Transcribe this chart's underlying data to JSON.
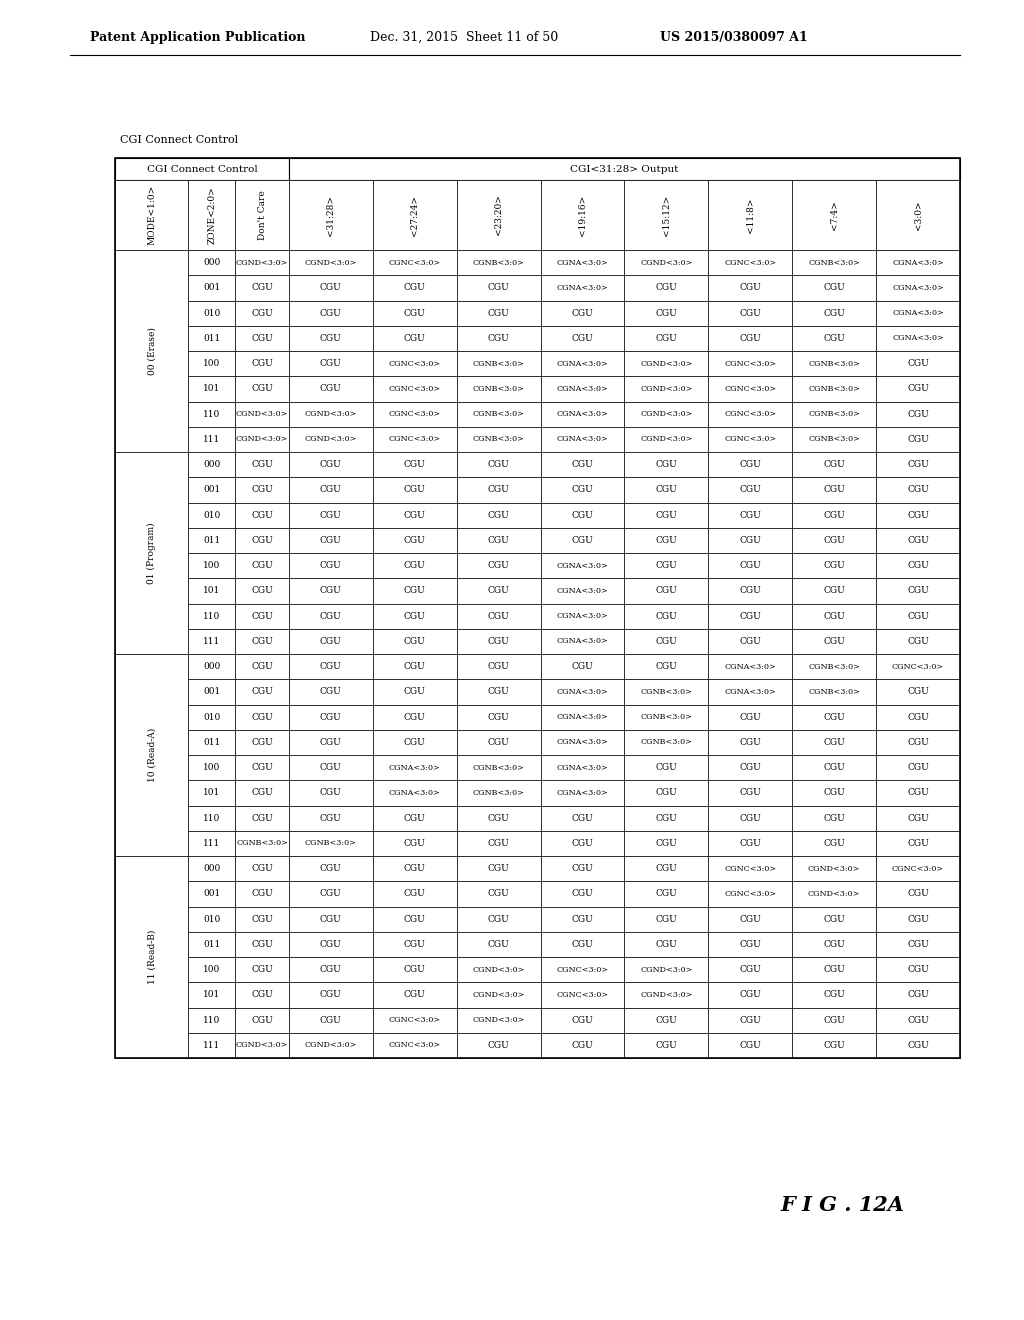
{
  "header_line1": "Patent Application Publication",
  "header_line2": "Dec. 31, 2015  Sheet 11 of 50",
  "header_line3": "US 2015/0380097 A1",
  "fig_label": "F I G . 12A",
  "above_table_label": "CGI Connect Control",
  "col_group1_label": "CGI Connect Control",
  "col_group2_label": "CGI<31:28> Output",
  "col_headers": [
    "MODE<1:0>",
    "ZONE<2:0>",
    "Don't Care",
    "<31:28>",
    "<27:24>",
    "<23:20>",
    "<19:16>",
    "<15:12>",
    "<11:8>",
    "<7:4>",
    "<3:0>"
  ],
  "row_groups": [
    {
      "mode_label": "00 (Erase)",
      "zones": [
        {
          "zone": "000",
          "dont_care": "CGND<3:0>",
          "c3128": "CGND<3:0>",
          "c2724": "CGNC<3:0>",
          "c2320": "CGNB<3:0>",
          "c1916": "CGNA<3:0>",
          "c1512": "CGND<3:0>",
          "c118": "CGNC<3:0>",
          "c74": "CGNB<3:0>",
          "c30": "CGNA<3:0>"
        },
        {
          "zone": "001",
          "dont_care": "CGU",
          "c3128": "CGU",
          "c2724": "CGU",
          "c2320": "CGU",
          "c1916": "CGNA<3:0>",
          "c1512": "CGU",
          "c118": "CGU",
          "c74": "CGU",
          "c30": "CGNA<3:0>"
        },
        {
          "zone": "010",
          "dont_care": "CGU",
          "c3128": "CGU",
          "c2724": "CGU",
          "c2320": "CGU",
          "c1916": "CGU",
          "c1512": "CGU",
          "c118": "CGU",
          "c74": "CGU",
          "c30": "CGNA<3:0>"
        },
        {
          "zone": "011",
          "dont_care": "CGU",
          "c3128": "CGU",
          "c2724": "CGU",
          "c2320": "CGU",
          "c1916": "CGU",
          "c1512": "CGU",
          "c118": "CGU",
          "c74": "CGU",
          "c30": "CGNA<3:0>"
        },
        {
          "zone": "100",
          "dont_care": "CGU",
          "c3128": "CGU",
          "c2724": "CGNC<3:0>",
          "c2320": "CGNB<3:0>",
          "c1916": "CGNA<3:0>",
          "c1512": "CGND<3:0>",
          "c118": "CGNC<3:0>",
          "c74": "CGNB<3:0>",
          "c30": "CGU"
        },
        {
          "zone": "101",
          "dont_care": "CGU",
          "c3128": "CGU",
          "c2724": "CGNC<3:0>",
          "c2320": "CGNB<3:0>",
          "c1916": "CGNA<3:0>",
          "c1512": "CGND<3:0>",
          "c118": "CGNC<3:0>",
          "c74": "CGNB<3:0>",
          "c30": "CGU"
        },
        {
          "zone": "110",
          "dont_care": "CGND<3:0>",
          "c3128": "CGND<3:0>",
          "c2724": "CGNC<3:0>",
          "c2320": "CGNB<3:0>",
          "c1916": "CGNA<3:0>",
          "c1512": "CGND<3:0>",
          "c118": "CGNC<3:0>",
          "c74": "CGNB<3:0>",
          "c30": "CGU"
        },
        {
          "zone": "111",
          "dont_care": "CGND<3:0>",
          "c3128": "CGND<3:0>",
          "c2724": "CGNC<3:0>",
          "c2320": "CGNB<3:0>",
          "c1916": "CGNA<3:0>",
          "c1512": "CGND<3:0>",
          "c118": "CGNC<3:0>",
          "c74": "CGNB<3:0>",
          "c30": "CGU"
        }
      ]
    },
    {
      "mode_label": "01 (Program)",
      "zones": [
        {
          "zone": "000",
          "dont_care": "CGU",
          "c3128": "CGU",
          "c2724": "CGU",
          "c2320": "CGU",
          "c1916": "CGU",
          "c1512": "CGU",
          "c118": "CGU",
          "c74": "CGU",
          "c30": "CGU"
        },
        {
          "zone": "001",
          "dont_care": "CGU",
          "c3128": "CGU",
          "c2724": "CGU",
          "c2320": "CGU",
          "c1916": "CGU",
          "c1512": "CGU",
          "c118": "CGU",
          "c74": "CGU",
          "c30": "CGU"
        },
        {
          "zone": "010",
          "dont_care": "CGU",
          "c3128": "CGU",
          "c2724": "CGU",
          "c2320": "CGU",
          "c1916": "CGU",
          "c1512": "CGU",
          "c118": "CGU",
          "c74": "CGU",
          "c30": "CGU"
        },
        {
          "zone": "011",
          "dont_care": "CGU",
          "c3128": "CGU",
          "c2724": "CGU",
          "c2320": "CGU",
          "c1916": "CGU",
          "c1512": "CGU",
          "c118": "CGU",
          "c74": "CGU",
          "c30": "CGU"
        },
        {
          "zone": "100",
          "dont_care": "CGU",
          "c3128": "CGU",
          "c2724": "CGU",
          "c2320": "CGU",
          "c1916": "CGNA<3:0>",
          "c1512": "CGU",
          "c118": "CGU",
          "c74": "CGU",
          "c30": "CGU"
        },
        {
          "zone": "101",
          "dont_care": "CGU",
          "c3128": "CGU",
          "c2724": "CGU",
          "c2320": "CGU",
          "c1916": "CGNA<3:0>",
          "c1512": "CGU",
          "c118": "CGU",
          "c74": "CGU",
          "c30": "CGU"
        },
        {
          "zone": "110",
          "dont_care": "CGU",
          "c3128": "CGU",
          "c2724": "CGU",
          "c2320": "CGU",
          "c1916": "CGNA<3:0>",
          "c1512": "CGU",
          "c118": "CGU",
          "c74": "CGU",
          "c30": "CGU"
        },
        {
          "zone": "111",
          "dont_care": "CGU",
          "c3128": "CGU",
          "c2724": "CGU",
          "c2320": "CGU",
          "c1916": "CGNA<3:0>",
          "c1512": "CGU",
          "c118": "CGU",
          "c74": "CGU",
          "c30": "CGU"
        }
      ]
    },
    {
      "mode_label": "10 (Read-A)",
      "zones": [
        {
          "zone": "000",
          "dont_care": "CGU",
          "c3128": "CGU",
          "c2724": "CGU",
          "c2320": "CGU",
          "c1916": "CGU",
          "c1512": "CGU",
          "c118": "CGNA<3:0>",
          "c74": "CGNB<3:0>",
          "c30": "CGNC<3:0>"
        },
        {
          "zone": "001",
          "dont_care": "CGU",
          "c3128": "CGU",
          "c2724": "CGU",
          "c2320": "CGU",
          "c1916": "CGNA<3:0>",
          "c1512": "CGNB<3:0>",
          "c118": "CGNA<3:0>",
          "c74": "CGNB<3:0>",
          "c30": "CGU"
        },
        {
          "zone": "010",
          "dont_care": "CGU",
          "c3128": "CGU",
          "c2724": "CGU",
          "c2320": "CGU",
          "c1916": "CGNA<3:0>",
          "c1512": "CGNB<3:0>",
          "c118": "CGU",
          "c74": "CGU",
          "c30": "CGU"
        },
        {
          "zone": "011",
          "dont_care": "CGU",
          "c3128": "CGU",
          "c2724": "CGU",
          "c2320": "CGU",
          "c1916": "CGNA<3:0>",
          "c1512": "CGNB<3:0>",
          "c118": "CGU",
          "c74": "CGU",
          "c30": "CGU"
        },
        {
          "zone": "100",
          "dont_care": "CGU",
          "c3128": "CGU",
          "c2724": "CGNA<3:0>",
          "c2320": "CGNB<3:0>",
          "c1916": "CGNA<3:0>",
          "c1512": "CGU",
          "c118": "CGU",
          "c74": "CGU",
          "c30": "CGU"
        },
        {
          "zone": "101",
          "dont_care": "CGU",
          "c3128": "CGU",
          "c2724": "CGNA<3:0>",
          "c2320": "CGNB<3:0>",
          "c1916": "CGNA<3:0>",
          "c1512": "CGU",
          "c118": "CGU",
          "c74": "CGU",
          "c30": "CGU"
        },
        {
          "zone": "110",
          "dont_care": "CGU",
          "c3128": "CGU",
          "c2724": "CGU",
          "c2320": "CGU",
          "c1916": "CGU",
          "c1512": "CGU",
          "c118": "CGU",
          "c74": "CGU",
          "c30": "CGU"
        },
        {
          "zone": "111",
          "dont_care": "CGNB<3:0>",
          "c3128": "CGNB<3:0>",
          "c2724": "CGU",
          "c2320": "CGU",
          "c1916": "CGU",
          "c1512": "CGU",
          "c118": "CGU",
          "c74": "CGU",
          "c30": "CGU"
        }
      ]
    },
    {
      "mode_label": "11 (Read-B)",
      "zones": [
        {
          "zone": "000",
          "dont_care": "CGU",
          "c3128": "CGU",
          "c2724": "CGU",
          "c2320": "CGU",
          "c1916": "CGU",
          "c1512": "CGU",
          "c118": "CGNC<3:0>",
          "c74": "CGND<3:0>",
          "c30": "CGNC<3:0>"
        },
        {
          "zone": "001",
          "dont_care": "CGU",
          "c3128": "CGU",
          "c2724": "CGU",
          "c2320": "CGU",
          "c1916": "CGU",
          "c1512": "CGU",
          "c118": "CGNC<3:0>",
          "c74": "CGND<3:0>",
          "c30": "CGU"
        },
        {
          "zone": "010",
          "dont_care": "CGU",
          "c3128": "CGU",
          "c2724": "CGU",
          "c2320": "CGU",
          "c1916": "CGU",
          "c1512": "CGU",
          "c118": "CGU",
          "c74": "CGU",
          "c30": "CGU"
        },
        {
          "zone": "011",
          "dont_care": "CGU",
          "c3128": "CGU",
          "c2724": "CGU",
          "c2320": "CGU",
          "c1916": "CGU",
          "c1512": "CGU",
          "c118": "CGU",
          "c74": "CGU",
          "c30": "CGU"
        },
        {
          "zone": "100",
          "dont_care": "CGU",
          "c3128": "CGU",
          "c2724": "CGU",
          "c2320": "CGND<3:0>",
          "c1916": "CGNC<3:0>",
          "c1512": "CGND<3:0>",
          "c118": "CGU",
          "c74": "CGU",
          "c30": "CGU"
        },
        {
          "zone": "101",
          "dont_care": "CGU",
          "c3128": "CGU",
          "c2724": "CGU",
          "c2320": "CGND<3:0>",
          "c1916": "CGNC<3:0>",
          "c1512": "CGND<3:0>",
          "c118": "CGU",
          "c74": "CGU",
          "c30": "CGU"
        },
        {
          "zone": "110",
          "dont_care": "CGU",
          "c3128": "CGU",
          "c2724": "CGNC<3:0>",
          "c2320": "CGND<3:0>",
          "c1916": "CGU",
          "c1512": "CGU",
          "c118": "CGU",
          "c74": "CGU",
          "c30": "CGU"
        },
        {
          "zone": "111",
          "dont_care": "CGND<3:0>",
          "c3128": "CGND<3:0>",
          "c2724": "CGNC<3:0>",
          "c2320": "CGU",
          "c1916": "CGU",
          "c1512": "CGU",
          "c118": "CGU",
          "c74": "CGU",
          "c30": "CGU"
        }
      ]
    }
  ]
}
